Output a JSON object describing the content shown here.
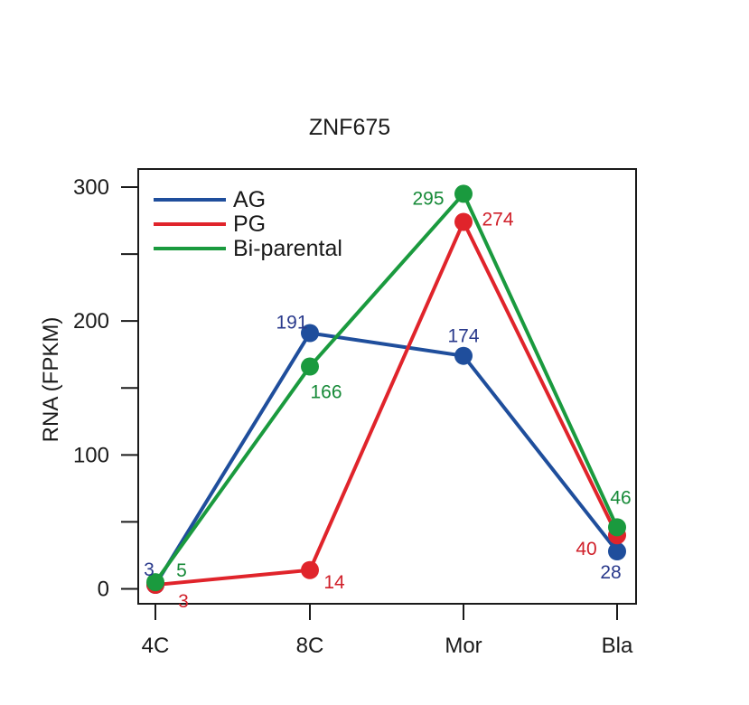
{
  "chart_data": {
    "type": "line",
    "title": "ZNF675",
    "xlabel": "",
    "ylabel": "RNA (FPKM)",
    "categories": [
      "4C",
      "8C",
      "Mor",
      "Bla"
    ],
    "ylim": [
      -12,
      315
    ],
    "yticks": [
      0,
      100,
      200,
      300
    ],
    "yminor_ticks": [
      50,
      150,
      250
    ],
    "grid": false,
    "legend_position": "top-left",
    "series": [
      {
        "name": "AG",
        "values": [
          3,
          191,
          174,
          28
        ],
        "labels": [
          "3",
          "191",
          "174",
          "28"
        ],
        "color": "#1f4e9c",
        "label_color": "#2a3a8c"
      },
      {
        "name": "PG",
        "values": [
          3,
          14,
          274,
          40
        ],
        "labels": [
          "3",
          "14",
          "274",
          "40"
        ],
        "color": "#e0242b",
        "label_color": "#d0202a"
      },
      {
        "name": "Bi-parental",
        "values": [
          5,
          166,
          295,
          46
        ],
        "labels": [
          "5",
          "166",
          "295",
          "46"
        ],
        "color": "#1a9a3e",
        "label_color": "#178a38"
      }
    ]
  }
}
